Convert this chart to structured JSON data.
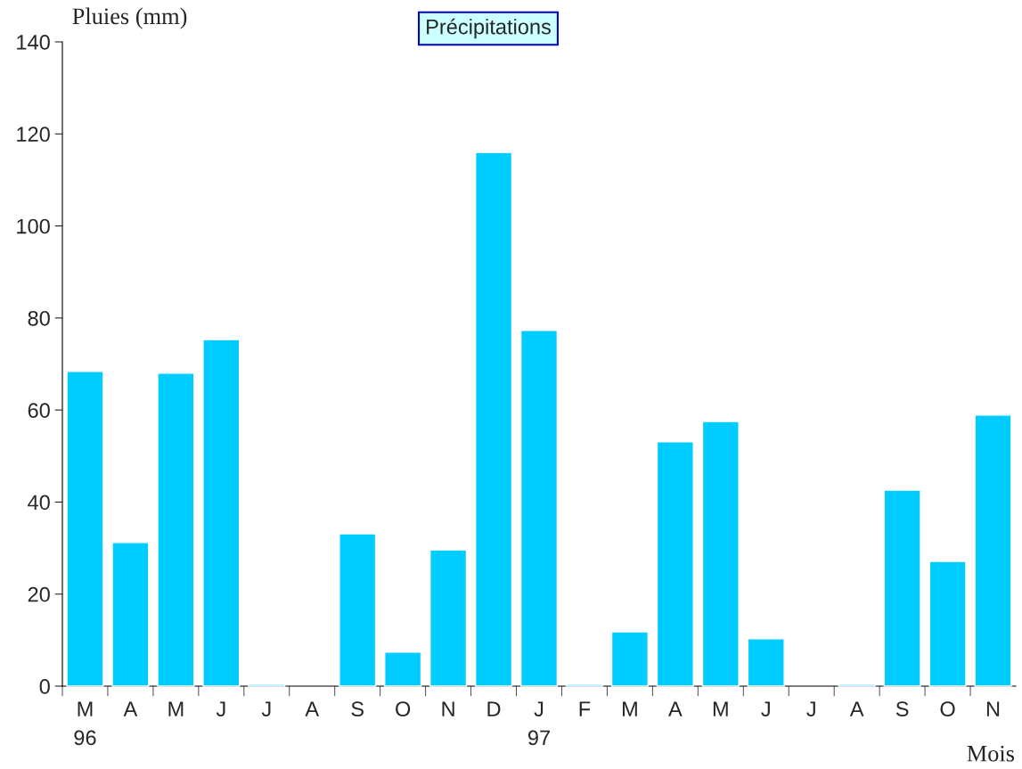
{
  "chart_data": {
    "type": "bar",
    "title": "Précipitations",
    "ylabel": "Pluies (mm)",
    "xlabel": "Mois",
    "categories": [
      "M\n96",
      "A",
      "M",
      "J",
      "J",
      "A",
      "S",
      "O",
      "N",
      "D",
      "J\n97",
      "F",
      "M",
      "A",
      "M",
      "J",
      "J",
      "A",
      "S",
      "O",
      "N"
    ],
    "values": [
      68.4,
      31.2,
      68.0,
      75.3,
      0.4,
      null,
      33.1,
      7.4,
      29.6,
      116.0,
      77.3,
      0.4,
      11.8,
      53.1,
      57.5,
      10.3,
      null,
      0.4,
      42.6,
      27.1,
      58.9
    ],
    "color": "#00ccff",
    "ylim": [
      0,
      140
    ],
    "yticks": [
      0,
      20,
      40,
      60,
      80,
      100,
      120,
      140
    ],
    "grid": false,
    "legend": false
  }
}
